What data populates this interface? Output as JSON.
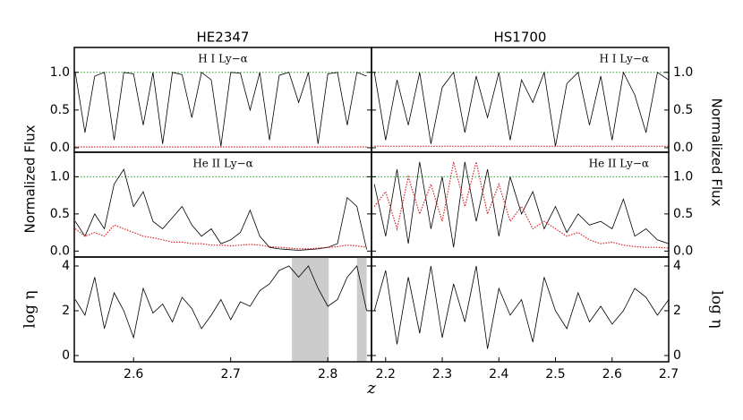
{
  "chart_data": [
    {
      "type": "line",
      "title": "HE2347",
      "annotation": "H I Ly−α",
      "x": [
        2.54,
        2.55,
        2.56,
        2.57,
        2.58,
        2.59,
        2.6,
        2.61,
        2.62,
        2.63,
        2.64,
        2.65,
        2.66,
        2.67,
        2.68,
        2.69,
        2.7,
        2.71,
        2.72,
        2.73,
        2.74,
        2.75,
        2.76,
        2.77,
        2.78,
        2.79,
        2.8,
        2.81,
        2.82,
        2.83,
        2.84
      ],
      "xlim": [
        2.539,
        2.845
      ],
      "ylim": [
        -0.06,
        1.33
      ],
      "yticks": [
        {
          "value": 0,
          "label": "0.0"
        },
        {
          "value": 0.5,
          "label": "0.5"
        },
        {
          "value": 1,
          "label": "1.0"
        }
      ],
      "reference_lines": [
        {
          "value": 1,
          "color": "#2ca02c"
        }
      ],
      "series": [
        {
          "color": "#000000",
          "style": "solid",
          "values": [
            1,
            0.2,
            0.95,
            1,
            0.1,
            1,
            0.98,
            0.3,
            1,
            0.05,
            1,
            0.97,
            0.4,
            1,
            0.9,
            0.02,
            1,
            0.99,
            0.5,
            1,
            0.1,
            0.96,
            1,
            0.6,
            1,
            0.05,
            0.98,
            1,
            0.3,
            1,
            0.95
          ]
        },
        {
          "color": "#d62728",
          "style": "dotted",
          "values": [
            0.01,
            0.01,
            0.01,
            0.01,
            0.01,
            0.01,
            0.01,
            0.01,
            0.01,
            0.01,
            0.01,
            0.01,
            0.01,
            0.01,
            0.01,
            0.01,
            0.01,
            0.01,
            0.01,
            0.01,
            0.01,
            0.01,
            0.01,
            0.01,
            0.01,
            0.01,
            0.01,
            0.01,
            0.01,
            0.01,
            0.01
          ]
        }
      ]
    },
    {
      "type": "line",
      "title": "HS1700",
      "annotation": "H I Ly−α",
      "x": [
        2.18,
        2.2,
        2.22,
        2.24,
        2.26,
        2.28,
        2.3,
        2.32,
        2.34,
        2.36,
        2.38,
        2.4,
        2.42,
        2.44,
        2.46,
        2.48,
        2.5,
        2.52,
        2.54,
        2.56,
        2.58,
        2.6,
        2.62,
        2.64,
        2.66,
        2.68,
        2.7
      ],
      "xlim": [
        2.175,
        2.7
      ],
      "ylim": [
        -0.06,
        1.33
      ],
      "yticks": [
        {
          "value": 0,
          "label": "0.0"
        },
        {
          "value": 0.5,
          "label": "0.5"
        },
        {
          "value": 1,
          "label": "1.0"
        }
      ],
      "reference_lines": [
        {
          "value": 1,
          "color": "#2ca02c"
        }
      ],
      "series": [
        {
          "color": "#000000",
          "style": "solid",
          "values": [
            1,
            0.1,
            0.9,
            0.3,
            1,
            0.05,
            0.8,
            1,
            0.2,
            0.95,
            0.4,
            1,
            0.1,
            0.9,
            0.6,
            1,
            0.02,
            0.85,
            1,
            0.3,
            0.95,
            0.1,
            1,
            0.7,
            0.2,
            1,
            0.9
          ]
        },
        {
          "color": "#d62728",
          "style": "dotted",
          "values": [
            0.02,
            0.02,
            0.02,
            0.02,
            0.02,
            0.02,
            0.02,
            0.02,
            0.02,
            0.02,
            0.02,
            0.02,
            0.02,
            0.02,
            0.02,
            0.02,
            0.02,
            0.02,
            0.02,
            0.02,
            0.02,
            0.02,
            0.02,
            0.02,
            0.02,
            0.02,
            0.02
          ]
        }
      ]
    },
    {
      "type": "line",
      "annotation": "He II Ly−α",
      "ylabel": "Normalized Flux",
      "x": [
        2.54,
        2.55,
        2.56,
        2.57,
        2.58,
        2.59,
        2.6,
        2.61,
        2.62,
        2.63,
        2.64,
        2.65,
        2.66,
        2.67,
        2.68,
        2.69,
        2.7,
        2.71,
        2.72,
        2.73,
        2.74,
        2.75,
        2.76,
        2.77,
        2.78,
        2.79,
        2.8,
        2.81,
        2.82,
        2.83,
        2.84
      ],
      "xlim": [
        2.539,
        2.845
      ],
      "ylim": [
        -0.08,
        1.33
      ],
      "yticks": [
        {
          "value": 0,
          "label": "0.0"
        },
        {
          "value": 0.5,
          "label": "0.5"
        },
        {
          "value": 1,
          "label": "1.0"
        }
      ],
      "reference_lines": [
        {
          "value": 1,
          "color": "#2ca02c"
        }
      ],
      "series": [
        {
          "color": "#000000",
          "style": "solid",
          "values": [
            0.4,
            0.2,
            0.5,
            0.3,
            0.9,
            1.1,
            0.6,
            0.8,
            0.4,
            0.3,
            0.45,
            0.6,
            0.35,
            0.2,
            0.3,
            0.1,
            0.15,
            0.25,
            0.55,
            0.2,
            0.05,
            0.03,
            0.02,
            0.01,
            0.02,
            0.03,
            0.05,
            0.1,
            0.72,
            0.6,
            0.02
          ]
        },
        {
          "color": "#d62728",
          "style": "dotted",
          "values": [
            0.3,
            0.2,
            0.25,
            0.2,
            0.35,
            0.3,
            0.25,
            0.2,
            0.18,
            0.15,
            0.12,
            0.12,
            0.1,
            0.1,
            0.08,
            0.08,
            0.07,
            0.08,
            0.09,
            0.08,
            0.06,
            0.05,
            0.04,
            0.03,
            0.03,
            0.04,
            0.05,
            0.06,
            0.08,
            0.07,
            0.05
          ]
        }
      ]
    },
    {
      "type": "line",
      "annotation": "He II Ly−α",
      "ylabel": "Normalized Flux",
      "x": [
        2.18,
        2.2,
        2.22,
        2.24,
        2.26,
        2.28,
        2.3,
        2.32,
        2.34,
        2.36,
        2.38,
        2.4,
        2.42,
        2.44,
        2.46,
        2.48,
        2.5,
        2.52,
        2.54,
        2.56,
        2.58,
        2.6,
        2.62,
        2.64,
        2.66,
        2.68,
        2.7
      ],
      "xlim": [
        2.175,
        2.7
      ],
      "ylim": [
        -0.08,
        1.33
      ],
      "yticks": [
        {
          "value": 0,
          "label": "0.0"
        },
        {
          "value": 0.5,
          "label": "0.5"
        },
        {
          "value": 1,
          "label": "1.0"
        }
      ],
      "reference_lines": [
        {
          "value": 1,
          "color": "#2ca02c"
        }
      ],
      "series": [
        {
          "color": "#000000",
          "style": "solid",
          "values": [
            0.9,
            0.2,
            1.1,
            0.1,
            1.2,
            0.3,
            1.0,
            0.05,
            1.2,
            0.4,
            1.1,
            0.2,
            1.0,
            0.5,
            0.8,
            0.3,
            0.6,
            0.25,
            0.5,
            0.35,
            0.4,
            0.3,
            0.7,
            0.2,
            0.3,
            0.15,
            0.1
          ]
        },
        {
          "color": "#d62728",
          "style": "dotted",
          "values": [
            0.6,
            0.8,
            0.3,
            1.0,
            0.5,
            0.9,
            0.4,
            1.2,
            0.6,
            1.2,
            0.5,
            0.9,
            0.4,
            0.6,
            0.3,
            0.4,
            0.3,
            0.2,
            0.25,
            0.15,
            0.1,
            0.12,
            0.08,
            0.06,
            0.05,
            0.05,
            0.04
          ]
        }
      ]
    },
    {
      "type": "line",
      "ylabel": "log η",
      "xlabel": "z",
      "x": [
        2.54,
        2.55,
        2.56,
        2.57,
        2.58,
        2.59,
        2.6,
        2.61,
        2.62,
        2.63,
        2.64,
        2.65,
        2.66,
        2.67,
        2.68,
        2.69,
        2.7,
        2.71,
        2.72,
        2.73,
        2.74,
        2.75,
        2.76,
        2.77,
        2.78,
        2.79,
        2.8,
        2.81,
        2.82,
        2.83,
        2.84
      ],
      "xlim": [
        2.539,
        2.845
      ],
      "ylim": [
        -0.28,
        4.4
      ],
      "xticks": [
        2.6,
        2.7,
        2.8
      ],
      "yticks": [
        0,
        2,
        4
      ],
      "shaded": [
        [
          2.763,
          2.801
        ],
        [
          2.83,
          2.84
        ]
      ],
      "series": [
        {
          "color": "#000000",
          "style": "solid",
          "values": [
            2.5,
            1.8,
            3.5,
            1.2,
            2.8,
            2.0,
            0.8,
            3.0,
            1.9,
            2.3,
            1.5,
            2.6,
            2.1,
            1.2,
            1.8,
            2.5,
            1.6,
            2.4,
            2.2,
            2.9,
            3.2,
            3.8,
            4,
            3.5,
            4,
            3.0,
            2.2,
            2.5,
            3.5,
            4,
            2.0
          ]
        }
      ]
    },
    {
      "type": "line",
      "ylabel": "log η",
      "x": [
        2.18,
        2.2,
        2.22,
        2.24,
        2.26,
        2.28,
        2.3,
        2.32,
        2.34,
        2.36,
        2.38,
        2.4,
        2.42,
        2.44,
        2.46,
        2.48,
        2.5,
        2.52,
        2.54,
        2.56,
        2.58,
        2.6,
        2.62,
        2.64,
        2.66,
        2.68,
        2.7
      ],
      "xlim": [
        2.175,
        2.7
      ],
      "ylim": [
        -0.28,
        4.4
      ],
      "xticks": [
        2.2,
        2.3,
        2.4,
        2.5,
        2.6,
        2.7
      ],
      "yticks": [
        0,
        2,
        4
      ],
      "series": [
        {
          "color": "#000000",
          "style": "solid",
          "values": [
            2.0,
            3.8,
            0.5,
            3.5,
            1.0,
            4,
            0.8,
            3.2,
            1.5,
            4,
            0.3,
            3.0,
            1.8,
            2.5,
            0.6,
            3.5,
            2.0,
            1.2,
            2.8,
            1.5,
            2.2,
            1.4,
            2.0,
            3.0,
            2.6,
            1.8,
            2.5
          ]
        }
      ]
    }
  ]
}
